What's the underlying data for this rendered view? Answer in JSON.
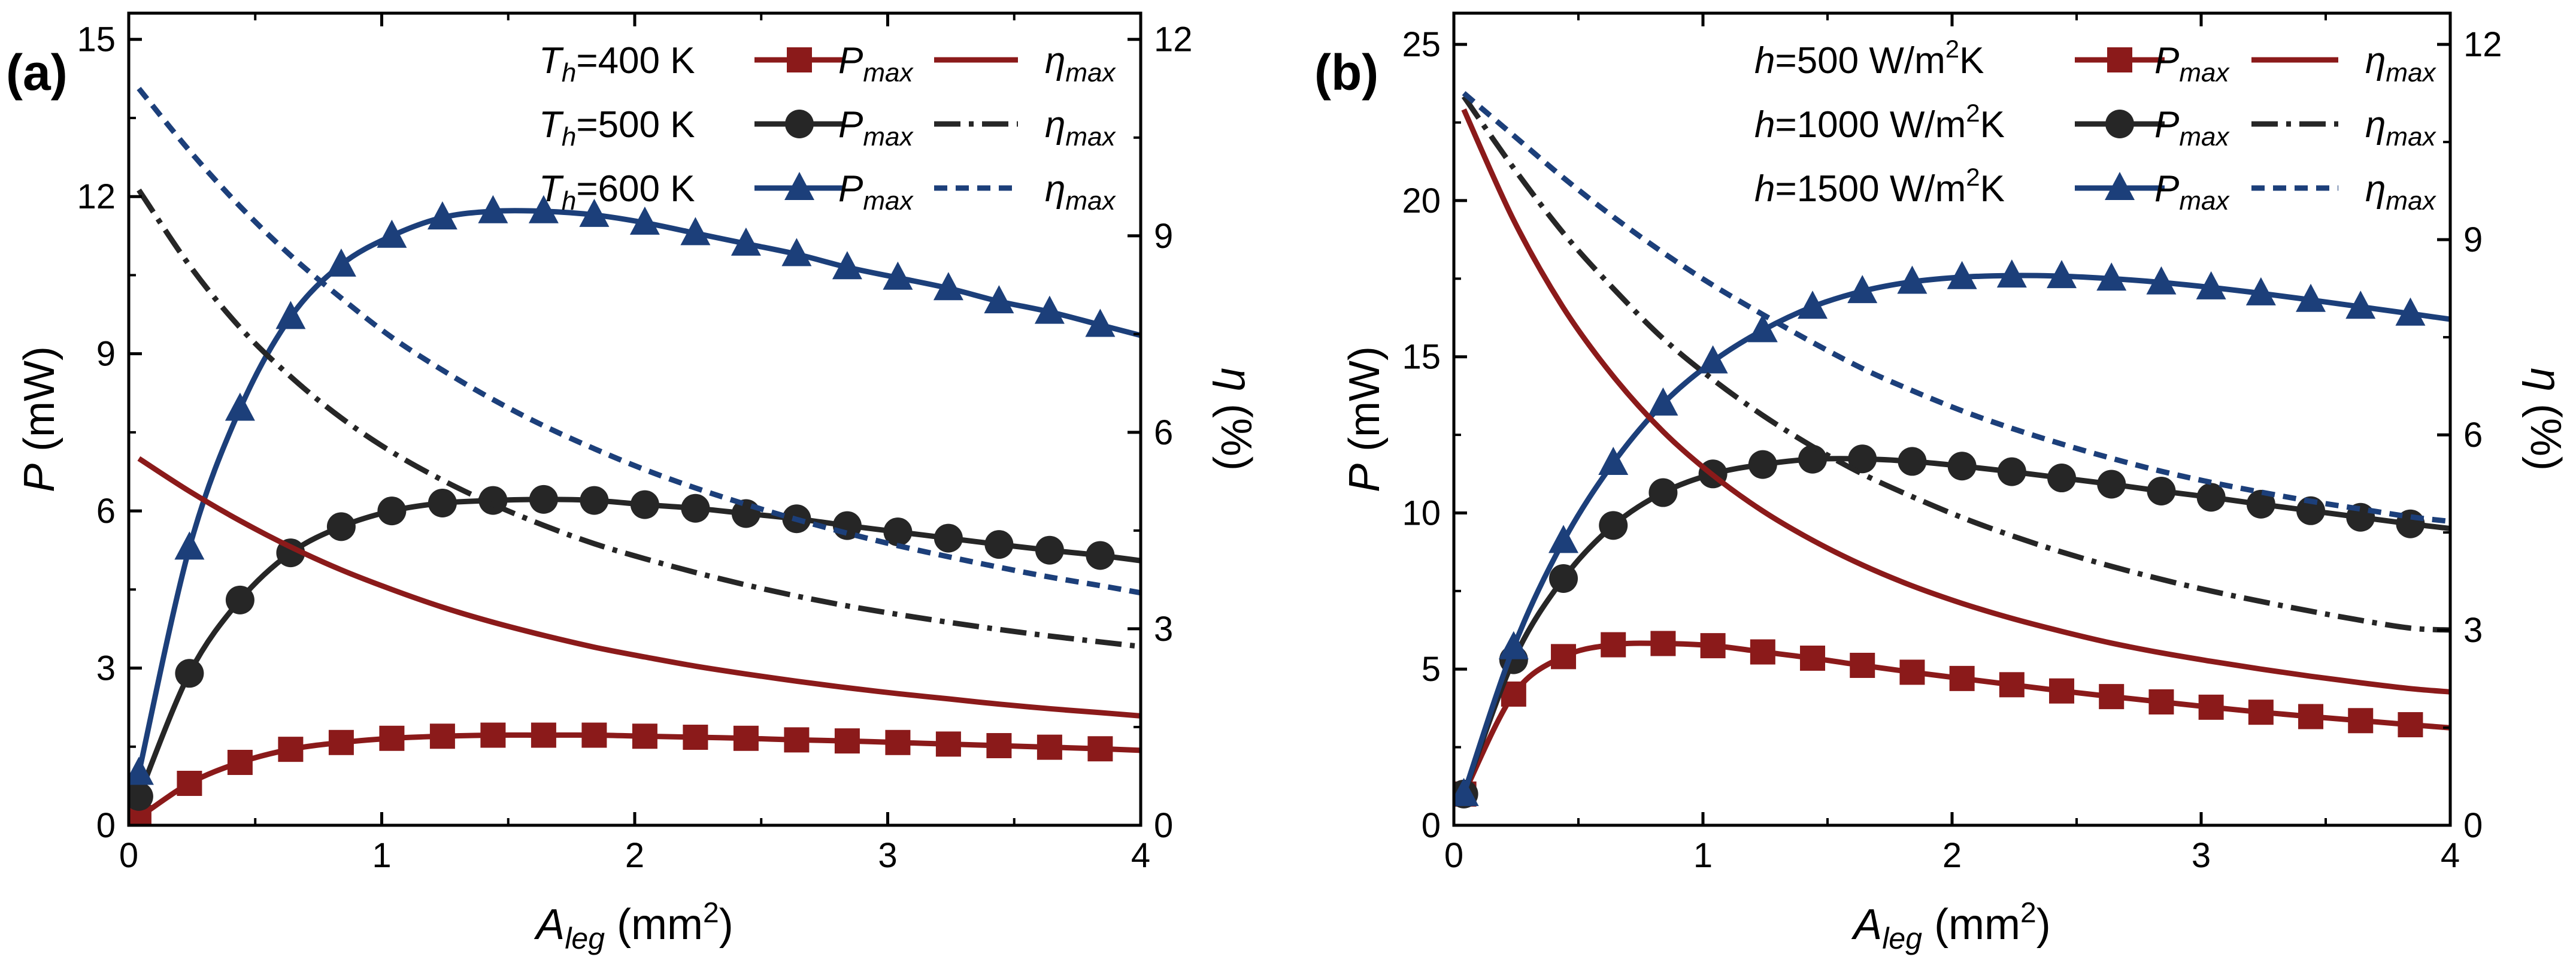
{
  "chart_data": [
    {
      "panel_label": "(a)",
      "type": "line",
      "xlabel": {
        "main": "A",
        "sub": "leg",
        "unit": " (mm",
        "sup": "2",
        "close": ")"
      },
      "ylabel_left": {
        "main": "P",
        "unit": " (mW)"
      },
      "ylabel_right": {
        "main": "η",
        "unit": " (%)"
      },
      "xlim": [
        0,
        4
      ],
      "ylim_left": [
        0,
        15.5
      ],
      "ylim_right": [
        0,
        12.4
      ],
      "xticks": [
        0,
        1,
        2,
        3,
        4
      ],
      "xtick_labels": [
        "0",
        "1",
        "2",
        "3",
        "4"
      ],
      "yticks_left": [
        0,
        3,
        6,
        9,
        12,
        15
      ],
      "ytick_labels_left": [
        "0",
        "3",
        "6",
        "9",
        "12",
        "15"
      ],
      "yticks_right": [
        0,
        3,
        6,
        9,
        12
      ],
      "ytick_labels_right": [
        "0",
        "3",
        "6",
        "9",
        "12"
      ],
      "x": [
        0.04,
        0.24,
        0.44,
        0.64,
        0.84,
        1.04,
        1.24,
        1.44,
        1.64,
        1.84,
        2.04,
        2.24,
        2.44,
        2.64,
        2.84,
        3.04,
        3.24,
        3.44,
        3.64,
        3.84,
        4.0
      ],
      "legend_rows": [
        {
          "label_pre": "T",
          "label_sub": "h",
          "label_post": "=400 K",
          "p_name": "P",
          "p_sub": "max",
          "eta_name": "η",
          "eta_sub": "max"
        },
        {
          "label_pre": "T",
          "label_sub": "h",
          "label_post": "=500 K",
          "p_name": "P",
          "p_sub": "max",
          "eta_name": "η",
          "eta_sub": "max"
        },
        {
          "label_pre": "T",
          "label_sub": "h",
          "label_post": "=600 K",
          "p_name": "P",
          "p_sub": "max",
          "eta_name": "η",
          "eta_sub": "max"
        }
      ],
      "series": [
        {
          "name": "Pmax (Th=400 K)",
          "axis": "left",
          "color": "#8b1a1a",
          "marker": "square",
          "dash": "none",
          "values": [
            0.15,
            0.8,
            1.2,
            1.45,
            1.58,
            1.66,
            1.7,
            1.72,
            1.72,
            1.72,
            1.7,
            1.68,
            1.66,
            1.63,
            1.61,
            1.58,
            1.55,
            1.52,
            1.49,
            1.46,
            1.43
          ]
        },
        {
          "name": "Pmax (Th=500 K)",
          "axis": "left",
          "color": "#262626",
          "marker": "circle",
          "dash": "none",
          "values": [
            0.55,
            2.9,
            4.3,
            5.2,
            5.7,
            6.0,
            6.15,
            6.2,
            6.22,
            6.2,
            6.12,
            6.05,
            5.95,
            5.85,
            5.72,
            5.6,
            5.48,
            5.36,
            5.25,
            5.15,
            5.05
          ]
        },
        {
          "name": "Pmax (Th=600 K)",
          "axis": "left",
          "color": "#1c3f7a",
          "marker": "triangle",
          "dash": "none",
          "values": [
            1.0,
            5.3,
            7.95,
            9.7,
            10.7,
            11.25,
            11.6,
            11.72,
            11.72,
            11.65,
            11.5,
            11.3,
            11.1,
            10.9,
            10.65,
            10.45,
            10.25,
            10.0,
            9.8,
            9.55,
            9.35
          ]
        },
        {
          "name": "ηmax (Th=400 K)",
          "axis": "right",
          "color": "#8b1a1a",
          "marker": "none",
          "dash": "none",
          "values": [
            5.6,
            5.1,
            4.65,
            4.25,
            3.9,
            3.6,
            3.33,
            3.1,
            2.9,
            2.72,
            2.57,
            2.43,
            2.31,
            2.2,
            2.1,
            2.01,
            1.93,
            1.85,
            1.78,
            1.72,
            1.67
          ]
        },
        {
          "name": "ηmax (Th=500 K)",
          "axis": "right",
          "color": "#262626",
          "marker": "none",
          "dash": "dashdot",
          "values": [
            9.7,
            8.55,
            7.6,
            6.85,
            6.22,
            5.7,
            5.27,
            4.9,
            4.58,
            4.3,
            4.07,
            3.86,
            3.67,
            3.5,
            3.35,
            3.22,
            3.1,
            2.99,
            2.89,
            2.8,
            2.73
          ]
        },
        {
          "name": "ηmax (Th=600 K)",
          "axis": "right",
          "color": "#1c3f7a",
          "marker": "none",
          "dash": "dash",
          "values": [
            11.25,
            10.3,
            9.45,
            8.7,
            8.05,
            7.45,
            6.95,
            6.5,
            6.1,
            5.75,
            5.43,
            5.15,
            4.9,
            4.67,
            4.46,
            4.27,
            4.1,
            3.94,
            3.79,
            3.66,
            3.55
          ]
        }
      ]
    },
    {
      "panel_label": "(b)",
      "type": "line",
      "xlabel": {
        "main": "A",
        "sub": "leg",
        "unit": " (mm",
        "sup": "2",
        "close": ")"
      },
      "ylabel_left": {
        "main": "P",
        "unit": " (mW)"
      },
      "ylabel_right": {
        "main": "η",
        "unit": " (%)"
      },
      "xlim": [
        0,
        4
      ],
      "ylim_left": [
        0,
        26
      ],
      "ylim_right": [
        0,
        12.48
      ],
      "xticks": [
        0,
        1,
        2,
        3,
        4
      ],
      "xtick_labels": [
        "0",
        "1",
        "2",
        "3",
        "4"
      ],
      "yticks_left": [
        0,
        5,
        10,
        15,
        20,
        25
      ],
      "ytick_labels_left": [
        "0",
        "5",
        "10",
        "15",
        "20",
        "25"
      ],
      "yticks_right": [
        0,
        3,
        6,
        9,
        12
      ],
      "ytick_labels_right": [
        "0",
        "3",
        "6",
        "9",
        "12"
      ],
      "x": [
        0.04,
        0.24,
        0.44,
        0.64,
        0.84,
        1.04,
        1.24,
        1.44,
        1.64,
        1.84,
        2.04,
        2.24,
        2.44,
        2.64,
        2.84,
        3.04,
        3.24,
        3.44,
        3.64,
        3.84,
        4.0
      ],
      "legend_rows": [
        {
          "label_pre": "h",
          "label_post": "=500 W/m",
          "label_sup": "2",
          "label_end": "K",
          "p_name": "P",
          "p_sub": "max",
          "eta_name": "η",
          "eta_sub": "max"
        },
        {
          "label_pre": "h",
          "label_post": "=1000 W/m",
          "label_sup": "2",
          "label_end": "K",
          "p_name": "P",
          "p_sub": "max",
          "eta_name": "η",
          "eta_sub": "max"
        },
        {
          "label_pre": "h",
          "label_post": "=1500 W/m",
          "label_sup": "2",
          "label_end": "K",
          "p_name": "P",
          "p_sub": "max",
          "eta_name": "η",
          "eta_sub": "max"
        }
      ],
      "series": [
        {
          "name": "Pmax (h=500 W/m2K)",
          "axis": "left",
          "color": "#8b1a1a",
          "marker": "square",
          "dash": "none",
          "values": [
            1.0,
            4.2,
            5.4,
            5.78,
            5.82,
            5.75,
            5.55,
            5.35,
            5.12,
            4.9,
            4.7,
            4.5,
            4.3,
            4.12,
            3.95,
            3.78,
            3.62,
            3.48,
            3.35,
            3.22,
            3.12
          ]
        },
        {
          "name": "Pmax (h=1000 W/m2K)",
          "axis": "left",
          "color": "#262626",
          "marker": "circle",
          "dash": "none",
          "values": [
            1.0,
            5.3,
            7.9,
            9.6,
            10.65,
            11.25,
            11.55,
            11.72,
            11.73,
            11.65,
            11.5,
            11.32,
            11.12,
            10.92,
            10.7,
            10.5,
            10.28,
            10.07,
            9.86,
            9.65,
            9.5
          ]
        },
        {
          "name": "Pmax (h=1500 W/m2K)",
          "axis": "left",
          "color": "#1c3f7a",
          "marker": "triangle",
          "dash": "none",
          "values": [
            1.0,
            5.7,
            9.1,
            11.6,
            13.5,
            14.85,
            15.85,
            16.6,
            17.1,
            17.4,
            17.55,
            17.6,
            17.58,
            17.5,
            17.38,
            17.22,
            17.03,
            16.82,
            16.6,
            16.38,
            16.2
          ]
        },
        {
          "name": "ηmax (h=500 W/m2K)",
          "axis": "right",
          "color": "#8b1a1a",
          "marker": "none",
          "dash": "none",
          "values": [
            11.0,
            9.3,
            7.95,
            6.9,
            6.05,
            5.38,
            4.83,
            4.38,
            4.0,
            3.68,
            3.41,
            3.18,
            2.98,
            2.8,
            2.65,
            2.52,
            2.4,
            2.29,
            2.19,
            2.1,
            2.05
          ]
        },
        {
          "name": "ηmax (h=1000 W/m2K)",
          "axis": "right",
          "color": "#262626",
          "marker": "none",
          "dash": "dashdot",
          "values": [
            11.2,
            10.1,
            9.1,
            8.25,
            7.48,
            6.85,
            6.3,
            5.82,
            5.4,
            5.05,
            4.73,
            4.45,
            4.2,
            3.98,
            3.78,
            3.6,
            3.44,
            3.29,
            3.15,
            3.03,
            3.0
          ]
        },
        {
          "name": "ηmax (h=1500 W/m2K)",
          "axis": "right",
          "color": "#1c3f7a",
          "marker": "none",
          "dash": "dash",
          "values": [
            11.25,
            10.6,
            9.95,
            9.35,
            8.8,
            8.3,
            7.85,
            7.42,
            7.02,
            6.68,
            6.37,
            6.1,
            5.86,
            5.64,
            5.44,
            5.27,
            5.12,
            4.98,
            4.86,
            4.74,
            4.67
          ]
        }
      ]
    }
  ]
}
